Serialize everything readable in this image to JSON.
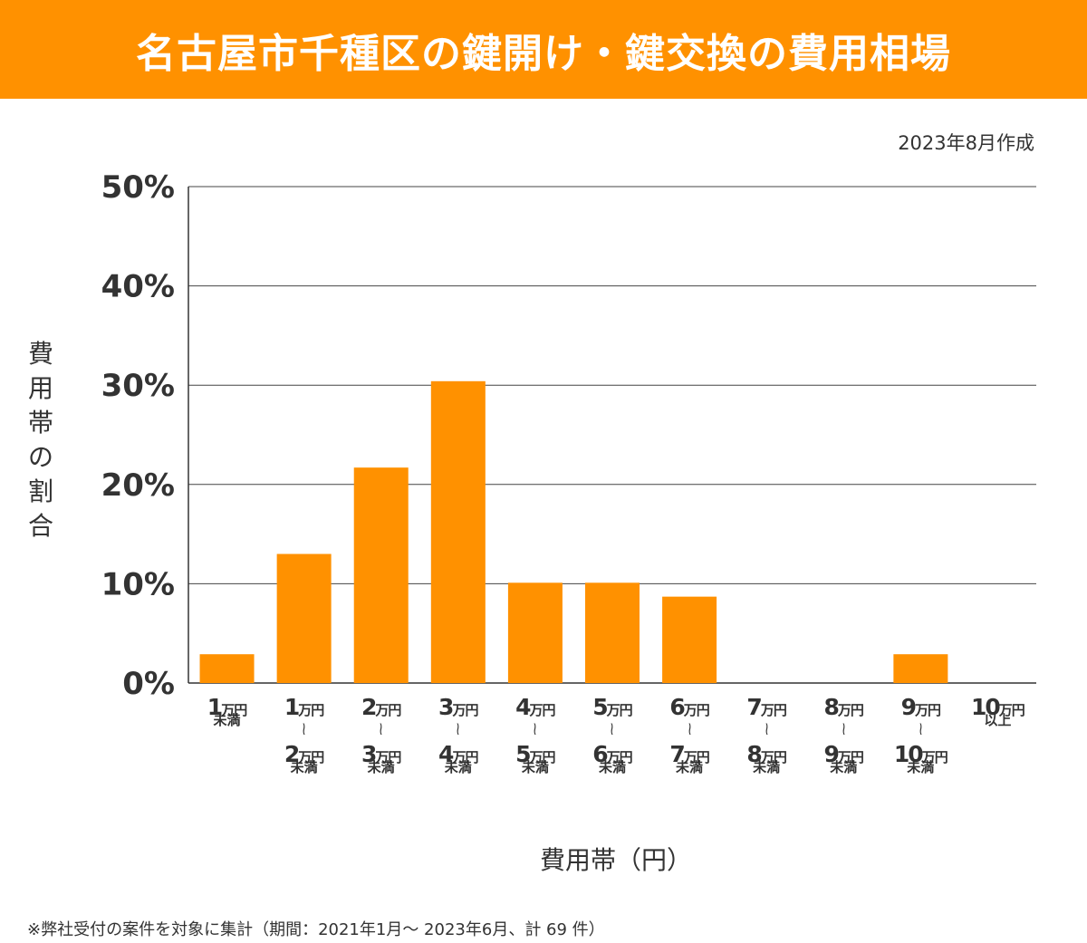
{
  "title": "名古屋市千種区の鍵開け・鍵交換の費用相場",
  "date": "2023年8月作成",
  "footnote": "※弊社受付の案件を対象に集計（期間：2021年1月～ 2023年6月、計 69 件）",
  "colors": {
    "banner": "#ff9100",
    "bar": "#ff9100"
  },
  "chart_data": {
    "type": "bar",
    "title": "",
    "xlabel": "費用帯（円）",
    "ylabel": "費用帯の割合",
    "ylim": [
      0,
      50
    ],
    "yticks": [
      "0%",
      "10%",
      "20%",
      "30%",
      "40%",
      "50%"
    ],
    "grid": true,
    "categories": [
      "1万円未満",
      "1万円〜2万円未満",
      "2万円〜3万円未満",
      "3万円〜4万円未満",
      "4万円〜5万円未満",
      "5万円〜6万円未満",
      "6万円〜7万円未満",
      "7万円〜8万円未満",
      "8万円〜9万円未満",
      "9万円〜10万円未満",
      "10万円以上"
    ],
    "category_labels": [
      {
        "a": "1",
        "b": null,
        "s": "未満"
      },
      {
        "a": "1",
        "b": "2",
        "s": "未満"
      },
      {
        "a": "2",
        "b": "3",
        "s": "未満"
      },
      {
        "a": "3",
        "b": "4",
        "s": "未満"
      },
      {
        "a": "4",
        "b": "5",
        "s": "未満"
      },
      {
        "a": "5",
        "b": "6",
        "s": "未満"
      },
      {
        "a": "6",
        "b": "7",
        "s": "未満"
      },
      {
        "a": "7",
        "b": "8",
        "s": "未満"
      },
      {
        "a": "8",
        "b": "9",
        "s": "未満"
      },
      {
        "a": "9",
        "b": "10",
        "s": "未満"
      },
      {
        "a": "10",
        "b": null,
        "s": "以上"
      }
    ],
    "unit": "万円",
    "tilde": "≀",
    "values": [
      2.9,
      13.0,
      21.7,
      30.4,
      10.1,
      10.1,
      8.7,
      0,
      0,
      2.9,
      0
    ]
  }
}
